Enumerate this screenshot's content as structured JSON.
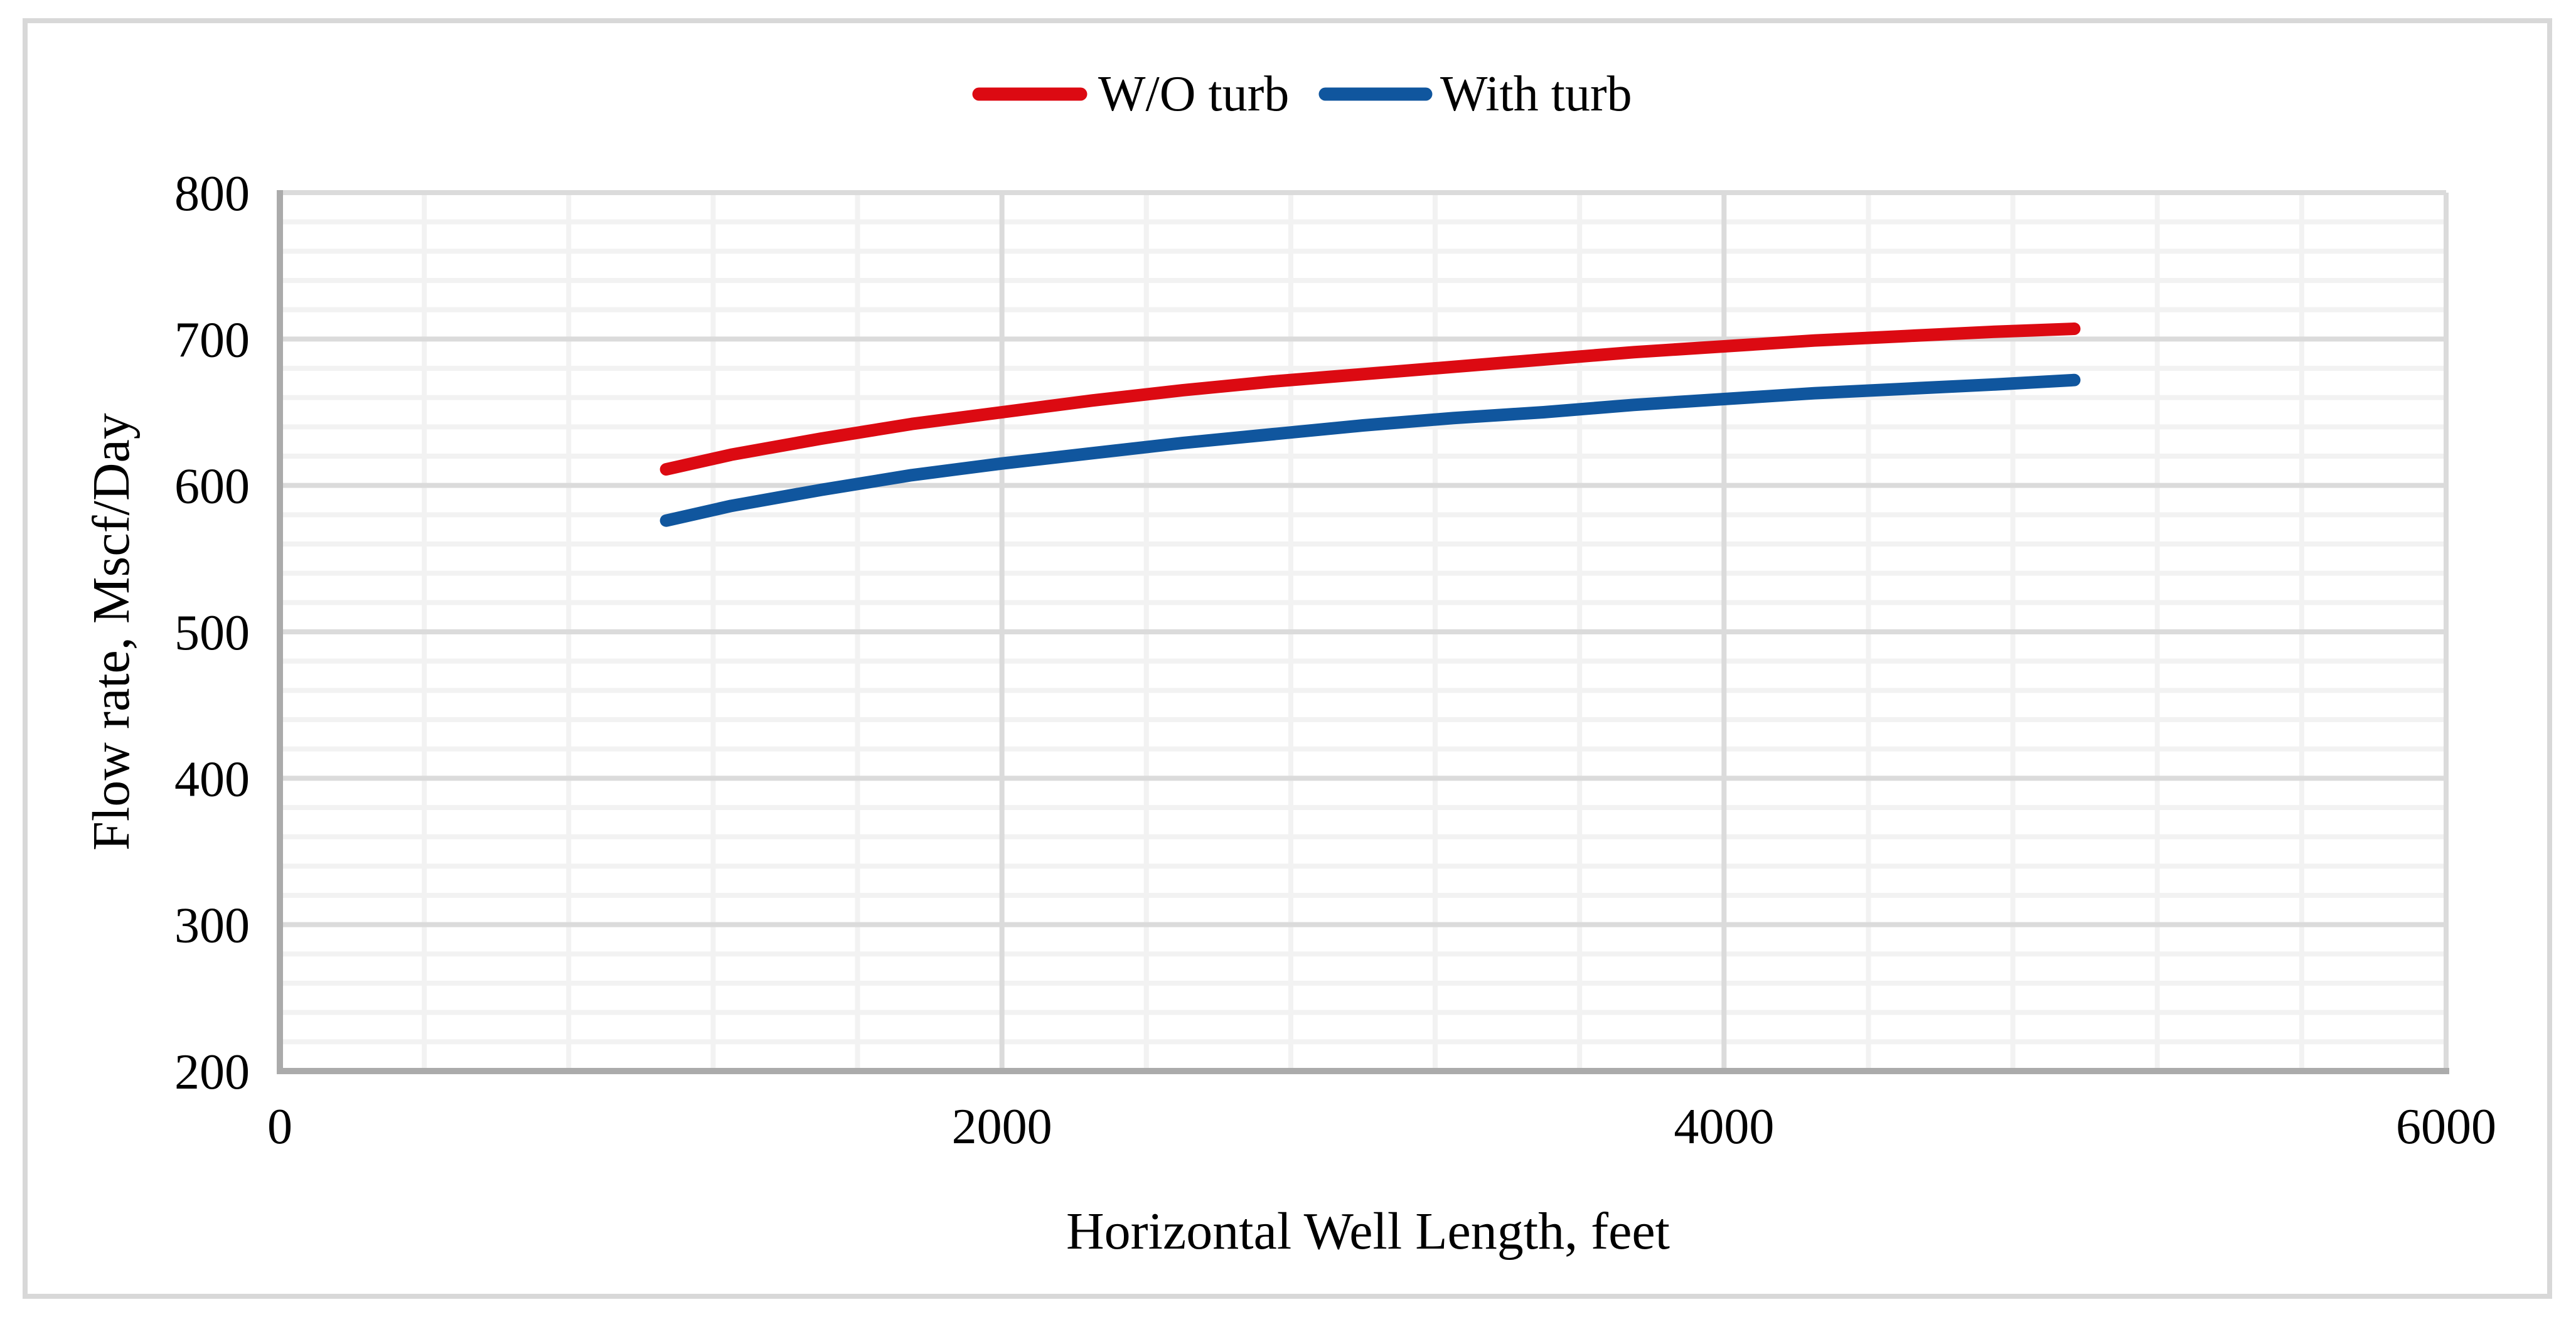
{
  "figure": {
    "background_color": "#FFFFFF",
    "frame_color": "#D8D8D8",
    "axis_line_color": "#ABABAB",
    "major_gridline_color": "#DBDBDB",
    "minor_gridline_color": "#F2F2F2",
    "text_color": "#000000"
  },
  "chart_data": {
    "type": "line",
    "title": "",
    "xlabel": "Horizontal Well Length, feet",
    "ylabel": "Flow rate, Mscf/Day",
    "xlim": [
      0,
      6000
    ],
    "ylim": [
      200,
      800
    ],
    "x_major_ticks": [
      0,
      2000,
      4000,
      6000
    ],
    "y_major_ticks": [
      200,
      300,
      400,
      500,
      600,
      700,
      800
    ],
    "x_minor_unit": 400,
    "y_minor_unit": 20,
    "grid": "major and minor gridlines on, both axes",
    "legend_position": "top-center",
    "legend_entries": [
      "W/O turb",
      "With turb"
    ],
    "series": [
      {
        "name": "W/O turb",
        "color": "#DC0A12",
        "x": [
          1070,
          1250,
          1500,
          1750,
          2000,
          2250,
          2500,
          2750,
          3000,
          3250,
          3500,
          3750,
          4000,
          4250,
          4500,
          4750,
          4970
        ],
        "y": [
          611,
          621,
          632,
          642,
          650,
          658,
          665,
          671,
          676,
          681,
          686,
          691,
          695,
          699,
          702,
          705,
          707
        ]
      },
      {
        "name": "With turb",
        "color": "#10569E",
        "x": [
          1070,
          1250,
          1500,
          1750,
          2000,
          2250,
          2500,
          2750,
          3000,
          3250,
          3500,
          3750,
          4000,
          4250,
          4500,
          4750,
          4970
        ],
        "y": [
          576,
          586,
          597,
          607,
          615,
          622,
          629,
          635,
          641,
          646,
          650,
          655,
          659,
          663,
          666,
          669,
          672
        ]
      }
    ]
  }
}
